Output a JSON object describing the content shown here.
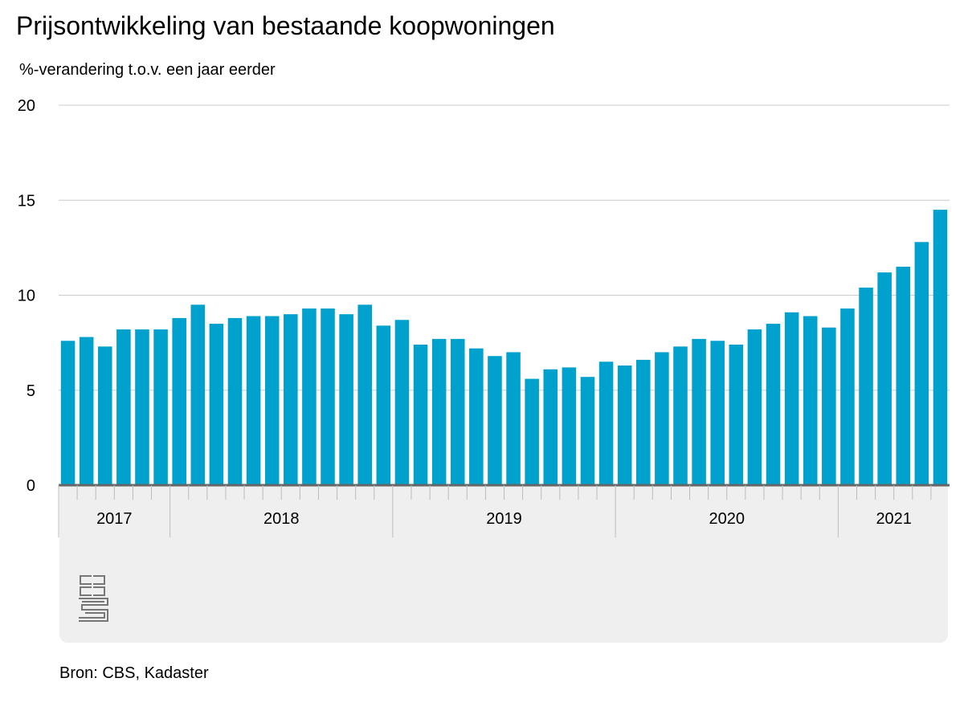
{
  "title": "Prijsontwikkeling van bestaande koopwoningen",
  "subtitle": "%-verandering t.o.v. een jaar eerder",
  "source": "Bron: CBS, Kadaster",
  "logo": "cbs",
  "colors": {
    "bar": "#00a1cd",
    "grid": "#cccccc",
    "axis": "#666666",
    "panel": "#efefef"
  },
  "chart_data": {
    "type": "bar",
    "ylim": [
      0,
      20
    ],
    "yticks": [
      0,
      5,
      10,
      15,
      20
    ],
    "grid": true,
    "years": [
      {
        "label": "2017",
        "months": 6
      },
      {
        "label": "2018",
        "months": 12
      },
      {
        "label": "2019",
        "months": 12
      },
      {
        "label": "2020",
        "months": 12
      },
      {
        "label": "2021",
        "months": 6
      }
    ],
    "values": [
      7.6,
      7.8,
      7.3,
      8.2,
      8.2,
      8.2,
      8.8,
      9.5,
      8.5,
      8.8,
      8.9,
      8.9,
      9.0,
      9.3,
      9.3,
      9.0,
      9.5,
      8.4,
      8.7,
      7.4,
      7.7,
      7.7,
      7.2,
      6.8,
      7.0,
      5.6,
      6.1,
      6.2,
      5.7,
      6.5,
      6.3,
      6.6,
      7.0,
      7.3,
      7.7,
      7.6,
      7.4,
      8.2,
      8.5,
      9.1,
      8.9,
      8.3,
      9.3,
      10.4,
      11.2,
      11.5,
      12.8,
      14.5
    ]
  }
}
